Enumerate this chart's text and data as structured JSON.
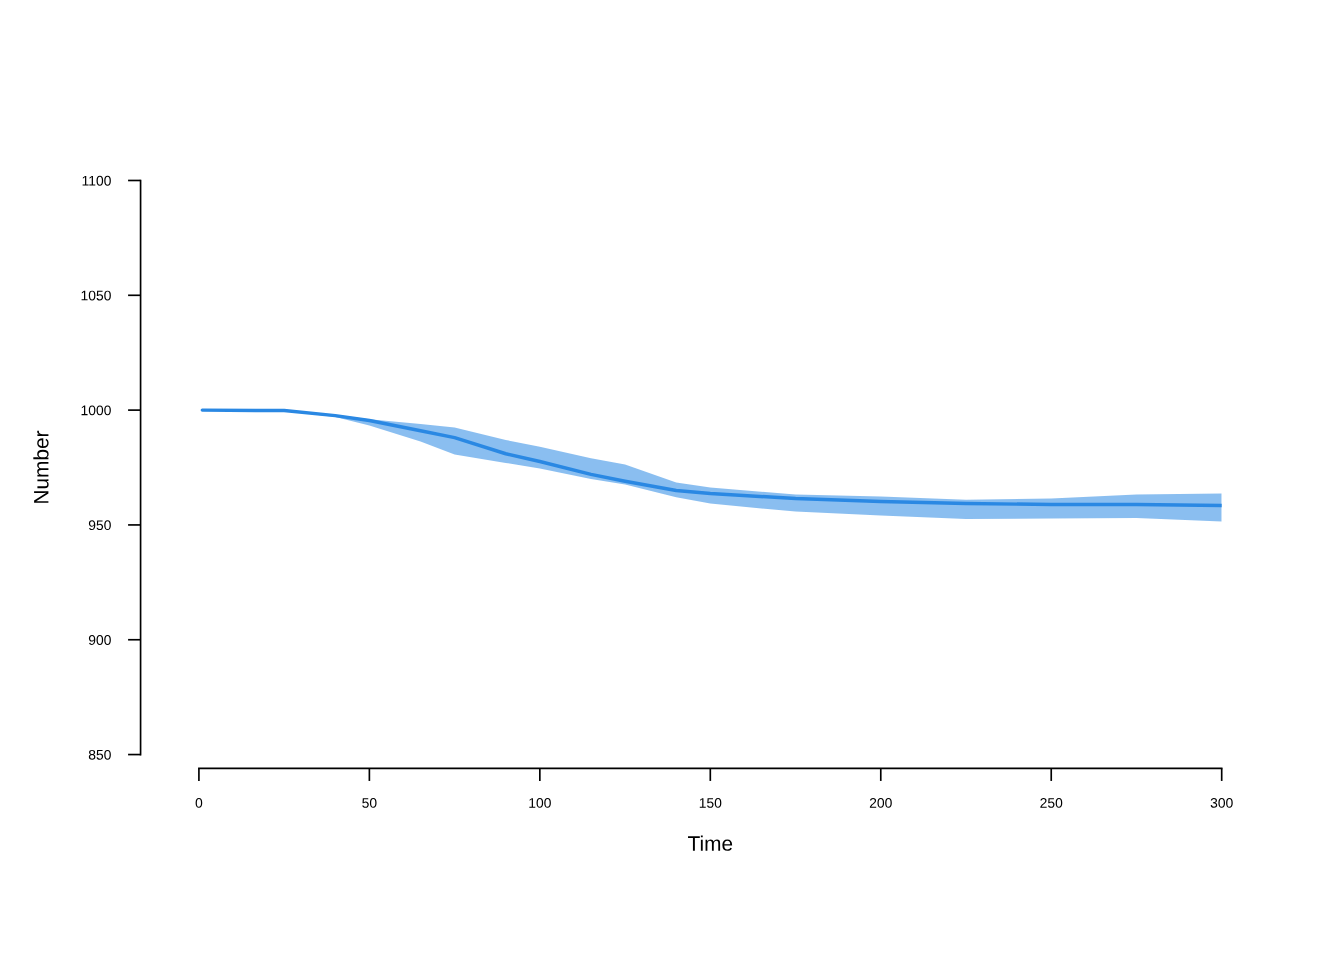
{
  "chart_data": {
    "type": "line",
    "xlabel": "Time",
    "ylabel": "Number",
    "x": [
      1,
      25,
      40,
      50,
      65,
      75,
      90,
      100,
      115,
      125,
      140,
      150,
      175,
      200,
      225,
      250,
      275,
      300
    ],
    "series": [
      {
        "color": "#2a88e3",
        "values": [
          1000,
          999.8,
          997.6,
          995.5,
          991,
          988,
          981,
          977.6,
          972,
          969,
          965,
          963.7,
          961.5,
          960.2,
          959.3,
          958.9,
          958.9,
          958.5
        ],
        "lower": [
          1000,
          999.6,
          997,
          993.3,
          986.3,
          980.7,
          977,
          974.6,
          970,
          967.6,
          962,
          959.3,
          955.8,
          954.1,
          952.6,
          952.8,
          953,
          951.5
        ],
        "upper": [
          1000,
          999.9,
          998,
          996,
          994,
          992.4,
          987,
          984,
          979,
          976.3,
          968.5,
          966.3,
          963.2,
          962.4,
          961,
          961.5,
          963.2,
          963.7
        ]
      }
    ],
    "xlim": [
      0,
      300
    ],
    "ylim": [
      850,
      1100
    ],
    "xticks": [
      0,
      50,
      100,
      150,
      200,
      250,
      300
    ],
    "yticks": [
      850,
      900,
      950,
      1000,
      1050,
      1100
    ],
    "grid": false,
    "legend": false
  }
}
